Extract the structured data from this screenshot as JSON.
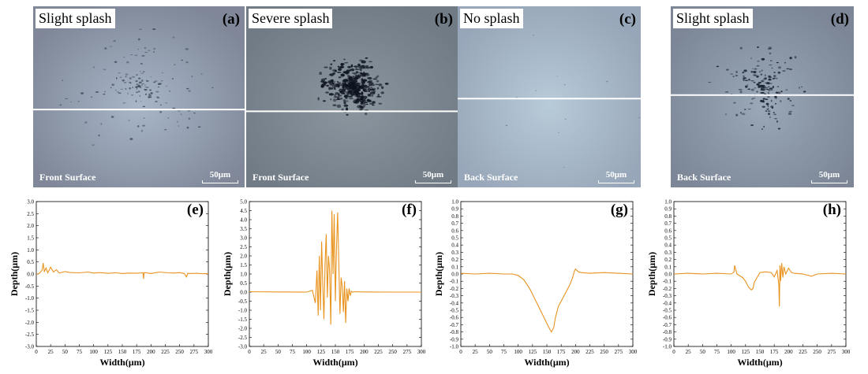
{
  "photos": [
    {
      "id": "a",
      "tag": "Slight splash",
      "letter": "a",
      "surface": "Front Surface",
      "scale": "50μm",
      "base": "#7f8798",
      "light": "#a8b6c8",
      "spot": "#45505e",
      "amount": "slight",
      "line_frac": 0.57
    },
    {
      "id": "b",
      "tag": "Severe splash",
      "letter": "b",
      "surface": "Front Surface",
      "scale": "50μm",
      "base": "#717b85",
      "light": "#8b969f",
      "spot": "#0e1420",
      "amount": "severe",
      "line_frac": 0.58
    },
    {
      "id": "c",
      "tag": "No splash",
      "letter": "c",
      "surface": "Back Surface",
      "scale": "50μm",
      "base": "#97a6b8",
      "light": "#b8cbd9",
      "spot": "#6a7280",
      "amount": "none",
      "line_frac": 0.51
    },
    {
      "id": "d",
      "tag": "Slight splash",
      "letter": "d",
      "surface": "Back Surface",
      "scale": "50μm",
      "base": "#7c8697",
      "light": "#9aa8b8",
      "spot": "#1a2230",
      "amount": "slight-cluster",
      "line_frac": 0.49
    }
  ],
  "chart_data": [
    {
      "id": "e",
      "letter": "e",
      "type": "line",
      "xlabel": "Width(μm)",
      "ylabel": "Depth(μm)",
      "xlim": [
        0,
        300
      ],
      "ylim": [
        -3.0,
        3.0
      ],
      "yticks": [
        3.0,
        2.5,
        2.0,
        1.5,
        1.0,
        0.5,
        0.0,
        -0.5,
        -1.0,
        -1.5,
        -2.0,
        -2.5,
        -3.0
      ],
      "xticks": [
        0,
        25,
        50,
        75,
        100,
        125,
        150,
        175,
        200,
        225,
        250,
        275,
        300
      ],
      "series": [
        {
          "color": "#e8931e",
          "x": [
            0,
            5,
            10,
            12,
            14,
            17,
            20,
            25,
            30,
            35,
            40,
            50,
            60,
            75,
            90,
            100,
            110,
            125,
            140,
            150,
            160,
            175,
            186,
            187,
            188,
            190,
            200,
            215,
            230,
            240,
            250,
            258,
            262,
            264,
            270,
            280,
            290,
            300
          ],
          "y": [
            0.0,
            0.02,
            0.15,
            0.45,
            0.1,
            0.25,
            0.05,
            0.28,
            0.08,
            0.18,
            0.04,
            0.1,
            0.06,
            0.05,
            0.08,
            0.04,
            0.06,
            0.03,
            0.05,
            0.02,
            0.04,
            0.03,
            0.05,
            -0.2,
            0.05,
            0.06,
            0.02,
            0.08,
            0.05,
            0.04,
            0.06,
            0.02,
            -0.12,
            0.03,
            0.02,
            0.03,
            0.01,
            0.02
          ]
        }
      ]
    },
    {
      "id": "f",
      "letter": "f",
      "type": "line",
      "xlabel": "Width(μm)",
      "ylabel": "Depth(μm)",
      "xlim": [
        0,
        300
      ],
      "ylim": [
        -3.0,
        5.0
      ],
      "yticks": [
        5.0,
        4.5,
        4.0,
        3.5,
        3.0,
        2.5,
        2.0,
        1.5,
        1.0,
        0.5,
        0.0,
        -0.5,
        -1.0,
        -1.5,
        -2.0,
        -2.5,
        -3.0
      ],
      "xticks": [
        0,
        25,
        50,
        75,
        100,
        125,
        150,
        175,
        200,
        225,
        250,
        275,
        300
      ],
      "series": [
        {
          "color": "#e8931e",
          "x": [
            0,
            50,
            100,
            110,
            115,
            118,
            120,
            122,
            124,
            126,
            128,
            130,
            132,
            134,
            136,
            138,
            140,
            142,
            144,
            146,
            148,
            150,
            152,
            154,
            156,
            158,
            160,
            162,
            164,
            166,
            168,
            170,
            172,
            174,
            176,
            178,
            180,
            185,
            200,
            250,
            300
          ],
          "y": [
            0.02,
            0.01,
            0.0,
            0.1,
            -0.6,
            1.2,
            -1.3,
            2.0,
            -1.0,
            2.8,
            0.5,
            -1.5,
            1.5,
            3.2,
            -0.3,
            2.0,
            1.2,
            -1.8,
            4.5,
            1.0,
            4.3,
            -0.5,
            2.5,
            4.4,
            1.5,
            -1.2,
            0.8,
            0.3,
            -1.1,
            0.6,
            -1.7,
            0.2,
            -0.5,
            0.2,
            -0.2,
            0.05,
            0.0,
            0.02,
            0.01,
            0.0,
            0.0
          ]
        }
      ]
    },
    {
      "id": "g",
      "letter": "g",
      "type": "line",
      "xlabel": "Width(μm)",
      "ylabel": "Depth(μm)",
      "xlim": [
        0,
        300
      ],
      "ylim": [
        -1.0,
        1.0
      ],
      "yticks": [
        1.0,
        0.9,
        0.8,
        0.7,
        0.6,
        0.5,
        0.4,
        0.3,
        0.2,
        0.1,
        0.0,
        -0.1,
        -0.2,
        -0.3,
        -0.4,
        -0.5,
        -0.6,
        -0.7,
        -0.8,
        -0.9,
        -1.0
      ],
      "xticks": [
        0,
        25,
        50,
        75,
        100,
        125,
        150,
        175,
        200,
        225,
        250,
        275,
        300
      ],
      "series": [
        {
          "color": "#e8931e",
          "x": [
            0,
            25,
            50,
            75,
            90,
            100,
            110,
            120,
            130,
            140,
            150,
            155,
            158,
            162,
            165,
            170,
            180,
            190,
            195,
            198,
            200,
            205,
            210,
            225,
            250,
            275,
            300
          ],
          "y": [
            0.01,
            0.0,
            0.01,
            0.0,
            0.0,
            -0.02,
            -0.08,
            -0.2,
            -0.36,
            -0.52,
            -0.68,
            -0.76,
            -0.8,
            -0.74,
            -0.6,
            -0.45,
            -0.3,
            -0.15,
            -0.05,
            0.04,
            0.07,
            0.03,
            0.02,
            0.01,
            0.02,
            0.01,
            0.0
          ]
        }
      ]
    },
    {
      "id": "h",
      "letter": "h",
      "type": "line",
      "xlabel": "Width(μm)",
      "ylabel": "Depth(μm)",
      "xlim": [
        0,
        300
      ],
      "ylim": [
        -1.0,
        1.0
      ],
      "yticks": [
        1.0,
        0.9,
        0.8,
        0.7,
        0.6,
        0.5,
        0.4,
        0.3,
        0.2,
        0.1,
        0.0,
        -0.1,
        -0.2,
        -0.3,
        -0.4,
        -0.5,
        -0.6,
        -0.7,
        -0.8,
        -0.9,
        -1.0
      ],
      "xticks": [
        0,
        25,
        50,
        75,
        100,
        125,
        150,
        175,
        200,
        225,
        250,
        275,
        300
      ],
      "series": [
        {
          "color": "#e8931e",
          "x": [
            0,
            25,
            50,
            75,
            100,
            105,
            106,
            110,
            120,
            125,
            130,
            135,
            138,
            140,
            145,
            150,
            160,
            170,
            175,
            180,
            183,
            184,
            185,
            186,
            188,
            190,
            192,
            195,
            200,
            205,
            210,
            225,
            240,
            250,
            275,
            300
          ],
          "y": [
            0.0,
            0.01,
            0.0,
            0.01,
            0.0,
            0.03,
            0.12,
            0.0,
            -0.05,
            -0.1,
            -0.18,
            -0.22,
            -0.2,
            -0.12,
            -0.05,
            0.02,
            0.03,
            0.02,
            -0.04,
            0.05,
            -0.15,
            -0.45,
            0.12,
            -0.1,
            0.15,
            -0.05,
            0.1,
            0.0,
            0.08,
            0.02,
            0.01,
            0.0,
            -0.03,
            0.0,
            0.01,
            0.0
          ]
        }
      ]
    }
  ]
}
